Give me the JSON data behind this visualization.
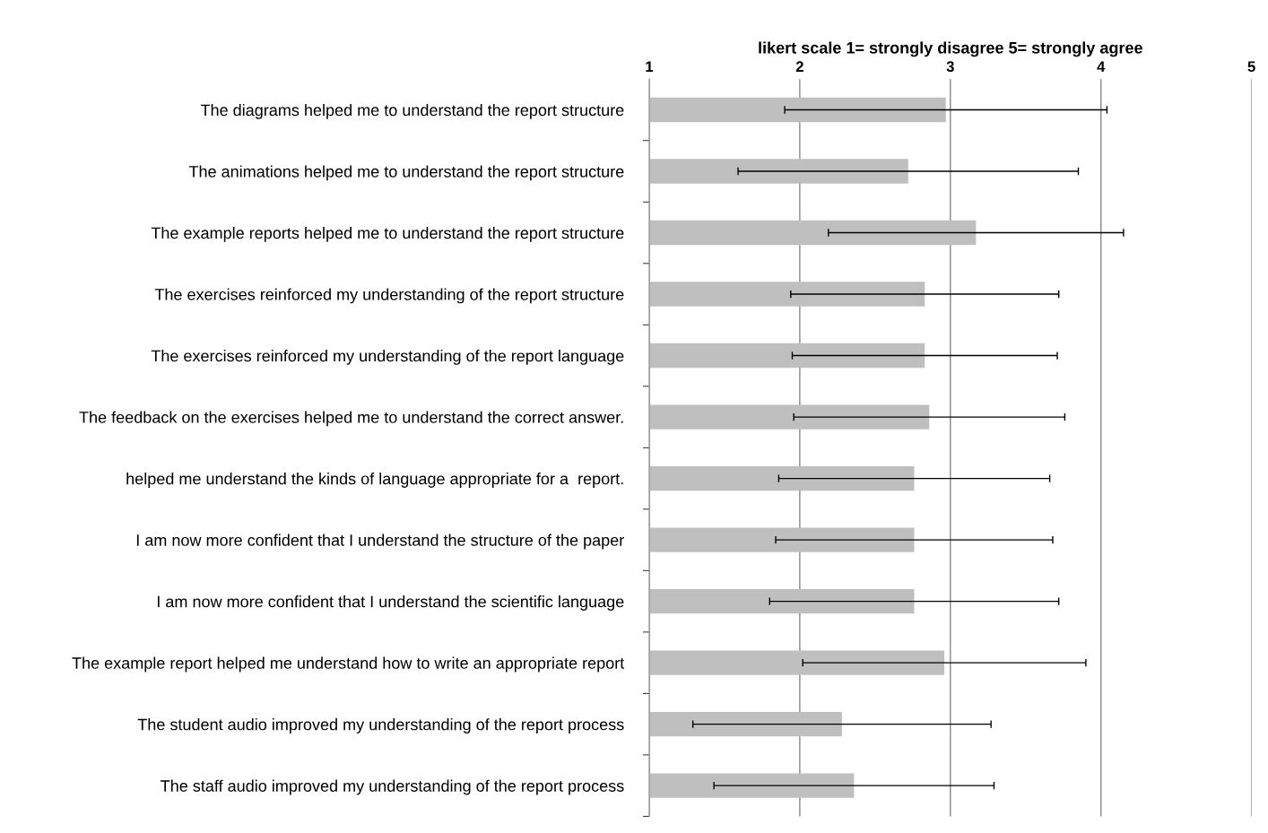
{
  "chart_data": {
    "type": "bar",
    "orientation": "horizontal",
    "xlabel": "likert scale 1= strongly disagree 5= strongly agree",
    "categories": [
      "The diagrams helped me to understand the report structure",
      "The animations helped me to understand the report structure",
      "The example reports helped me to understand the report structure",
      "The exercises reinforced my understanding of the report structure",
      "The exercises reinforced my understanding of the report language",
      "The feedback on the exercises helped me to understand the correct answer.",
      "helped me understand the kinds of language appropriate for a  report.",
      "I am now more confident that I understand the structure of the paper",
      "I am now more confident that I understand the scientific language",
      "The example report helped me understand how to write an appropriate report",
      "The student audio improved my understanding of the report process",
      "The staff audio improved my understanding of the report process"
    ],
    "values": [
      2.97,
      2.72,
      3.17,
      2.83,
      2.83,
      2.86,
      2.76,
      2.76,
      2.76,
      2.96,
      2.28,
      2.36
    ],
    "errors": [
      1.07,
      1.13,
      0.98,
      0.89,
      0.88,
      0.9,
      0.9,
      0.92,
      0.96,
      0.94,
      0.99,
      0.93
    ],
    "color": "#bfbfbf",
    "xlim": [
      1,
      5
    ],
    "xticks": [
      1,
      2,
      3,
      4,
      5
    ],
    "grid": "x",
    "legend": false
  }
}
